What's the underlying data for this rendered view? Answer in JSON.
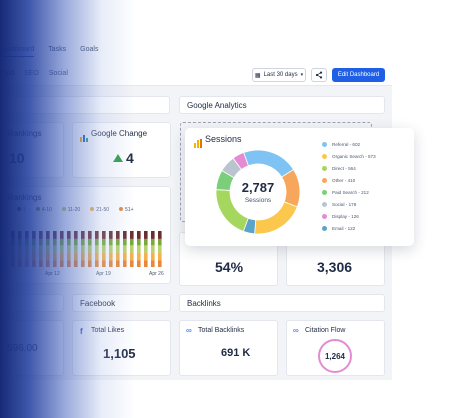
{
  "nav": {
    "tabs": [
      {
        "label": "Dashboard",
        "active": true
      },
      {
        "label": "Tasks",
        "active": false
      },
      {
        "label": "Goals",
        "active": false
      }
    ],
    "subtabs": [
      {
        "label": "Paid",
        "active": true
      },
      {
        "label": "SEO",
        "active": false
      },
      {
        "label": "Social",
        "active": false
      }
    ]
  },
  "toolbar": {
    "date_range_label": "Last 30 days",
    "edit_label": "Edit Dashboard"
  },
  "sections": {
    "google_analytics": "Google Analytics",
    "facebook": "Facebook",
    "backlinks": "Backlinks"
  },
  "left_cards": {
    "rankings_title": "Rankings",
    "rankings_value": "10",
    "chart_title": "Rankings",
    "legend": [
      "1",
      "4-10",
      "11-20",
      "21-50",
      "51+"
    ],
    "x_ticks": [
      "Apr 12",
      "Apr 19",
      "Apr 26"
    ],
    "spend_value": "596.00"
  },
  "google_change": {
    "title": "Google Change",
    "value": "4"
  },
  "sessions": {
    "title": "Sessions",
    "total": "2,787",
    "total_label": "Sessions"
  },
  "metrics": {
    "percent_value": "54%",
    "count_value": "3,306"
  },
  "facebook_likes": {
    "title": "Total Likes",
    "value": "1,105"
  },
  "backlinks_total": {
    "title": "Total Backlinks",
    "value": "691 K"
  },
  "citation": {
    "title": "Citation Flow",
    "value": "1,264"
  },
  "colors": {
    "referral": "#7ec3f3",
    "organic": "#fbc84d",
    "direct": "#a5d65d",
    "other": "#f7a75c",
    "paid": "#7ccf7a",
    "social": "#b9c4cf",
    "display": "#e48bd3",
    "email": "#5aa3c9",
    "accent": "#1f5fe6"
  },
  "chart_data": {
    "type": "pie",
    "title": "Sessions",
    "categories": [
      "Referral",
      "Organic Search",
      "Direct",
      "Other",
      "Paid Search",
      "Social",
      "Display",
      "Email"
    ],
    "values": [
      602,
      573,
      564,
      410,
      212,
      178,
      126,
      122
    ],
    "legend_labels": [
      "Referral - 602",
      "Organic Search - 573",
      "Direct - 564",
      "Other - 410",
      "Paid Search - 212",
      "Social - 178",
      "Display - 126",
      "Email - 122"
    ],
    "legend_position": "right"
  }
}
